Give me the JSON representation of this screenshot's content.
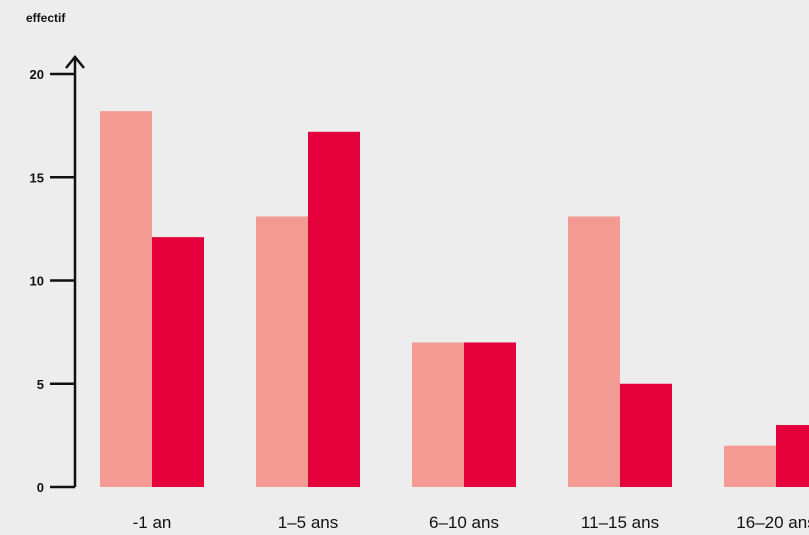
{
  "chart_data": {
    "type": "bar",
    "ylabel": "effectif",
    "xlabel": "",
    "ylim": [
      0,
      20
    ],
    "yticks": [
      "0",
      "5",
      "10",
      "15",
      "20"
    ],
    "categories": [
      "-1 an",
      "1–5 ans",
      "6–10 ans",
      "11–15 ans",
      "16–20 ans"
    ],
    "series": [
      {
        "values": [
          18.2,
          13.1,
          7.0,
          13.1,
          2.0
        ],
        "color": "#f39b92"
      },
      {
        "values": [
          12.1,
          17.2,
          7.0,
          5.0,
          3.0
        ],
        "color": "#e4003a"
      }
    ],
    "grid": false,
    "legend": "none"
  }
}
